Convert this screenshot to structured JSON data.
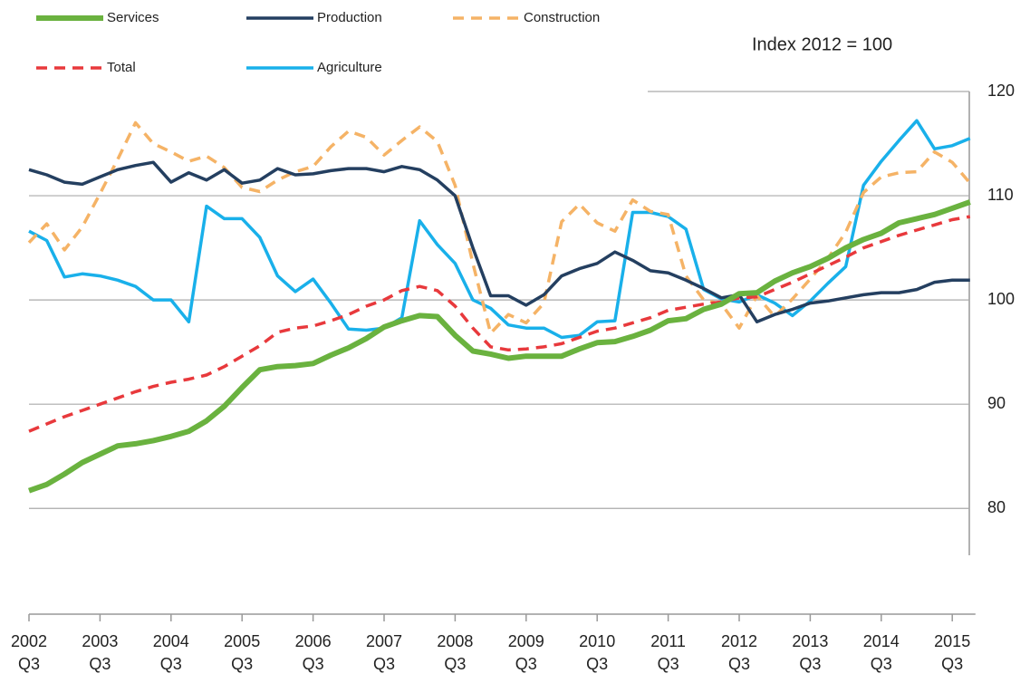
{
  "chart_data": {
    "type": "line",
    "annotation": "Index 2012 = 100",
    "categories": [
      "2002 Q3",
      null,
      null,
      null,
      "2003 Q3",
      null,
      null,
      null,
      "2004 Q3",
      null,
      null,
      null,
      "2005 Q3",
      null,
      null,
      null,
      "2006 Q3",
      null,
      null,
      null,
      "2007 Q3",
      null,
      null,
      null,
      "2008 Q3",
      null,
      null,
      null,
      "2009 Q3",
      null,
      null,
      null,
      "2010 Q3",
      null,
      null,
      null,
      "2011 Q3",
      null,
      null,
      null,
      "2012 Q3",
      null,
      null,
      null,
      "2013 Q3",
      null,
      null,
      null,
      "2014 Q3",
      null,
      null,
      null,
      "2015 Q3",
      null
    ],
    "series": [
      {
        "name": "Services",
        "color": "#6ab23f",
        "style": "solid",
        "width": 6,
        "values": [
          81.7,
          82.3,
          83.3,
          84.4,
          85.2,
          86.0,
          86.2,
          86.5,
          86.9,
          87.4,
          88.4,
          89.8,
          91.6,
          93.3,
          93.6,
          93.7,
          93.9,
          94.7,
          95.4,
          96.3,
          97.4,
          98.0,
          98.5,
          98.4,
          96.6,
          95.1,
          94.8,
          94.4,
          94.6,
          94.6,
          94.6,
          95.3,
          95.9,
          96.0,
          96.5,
          97.1,
          98.0,
          98.2,
          99.1,
          99.6,
          100.6,
          100.7,
          101.8,
          102.6,
          103.2,
          104.0,
          105.0,
          105.8,
          106.4,
          107.4,
          107.8,
          108.2,
          108.8,
          109.4
        ]
      },
      {
        "name": "Production",
        "color": "#243f60",
        "style": "solid",
        "width": 3.5,
        "values": [
          112.5,
          112.0,
          111.3,
          111.1,
          111.8,
          112.5,
          112.9,
          113.2,
          111.3,
          112.2,
          111.5,
          112.5,
          111.2,
          111.5,
          112.6,
          112.0,
          112.1,
          112.4,
          112.6,
          112.6,
          112.3,
          112.8,
          112.5,
          111.5,
          110.0,
          105.0,
          100.4,
          100.4,
          99.5,
          100.5,
          102.3,
          103.0,
          103.5,
          104.6,
          103.8,
          102.8,
          102.6,
          101.9,
          101.1,
          100.2,
          100.5,
          97.9,
          98.6,
          99.1,
          99.7,
          99.9,
          100.2,
          100.5,
          100.7,
          100.7,
          101.0,
          101.7,
          101.9,
          101.9
        ]
      },
      {
        "name": "Construction",
        "color": "#f5b366",
        "style": "dashed",
        "width": 3.5,
        "values": [
          105.5,
          107.3,
          104.8,
          107.0,
          110.2,
          113.5,
          117.0,
          115.0,
          114.2,
          113.3,
          113.8,
          112.7,
          110.8,
          110.4,
          111.5,
          112.3,
          112.8,
          114.7,
          116.2,
          115.6,
          113.9,
          115.3,
          116.6,
          115.2,
          111.0,
          103.5,
          96.8,
          98.6,
          97.8,
          99.7,
          107.5,
          109.2,
          107.4,
          106.6,
          109.6,
          108.5,
          108.2,
          102.3,
          100.0,
          99.6,
          97.3,
          100.4,
          98.4,
          100.1,
          102.0,
          104.0,
          106.5,
          110.3,
          111.8,
          112.2,
          112.3,
          114.2,
          113.2,
          111.2
        ]
      },
      {
        "name": "Total",
        "color": "#e8393c",
        "style": "dashed",
        "width": 3.5,
        "values": [
          87.4,
          88.1,
          88.8,
          89.4,
          90.0,
          90.6,
          91.2,
          91.7,
          92.1,
          92.4,
          92.8,
          93.6,
          94.6,
          95.6,
          96.9,
          97.3,
          97.5,
          98.0,
          98.6,
          99.4,
          100.0,
          100.9,
          101.3,
          100.9,
          99.4,
          97.3,
          95.5,
          95.2,
          95.3,
          95.5,
          95.8,
          96.4,
          97.0,
          97.3,
          97.8,
          98.3,
          99.0,
          99.3,
          99.6,
          99.8,
          100.2,
          100.3,
          101.0,
          101.7,
          102.5,
          103.3,
          104.1,
          105.0,
          105.6,
          106.2,
          106.7,
          107.2,
          107.7,
          108.0
        ]
      },
      {
        "name": "Agriculture",
        "color": "#19b0ea",
        "style": "solid",
        "width": 3.5,
        "values": [
          106.6,
          105.7,
          102.2,
          102.5,
          102.3,
          101.9,
          101.3,
          100.0,
          100.0,
          97.9,
          109.0,
          107.8,
          107.8,
          106.0,
          102.3,
          100.8,
          102.0,
          99.7,
          97.2,
          97.1,
          97.3,
          98.3,
          107.6,
          105.3,
          103.5,
          100.0,
          99.2,
          97.6,
          97.3,
          97.3,
          96.4,
          96.6,
          97.9,
          98.0,
          108.4,
          108.4,
          108.0,
          106.8,
          101.0,
          100.1,
          99.8,
          100.5,
          99.7,
          98.5,
          99.9,
          101.6,
          103.2,
          111.0,
          113.3,
          115.3,
          117.2,
          114.5,
          114.8,
          115.5
        ]
      }
    ],
    "ylim": [
      75.5,
      120
    ],
    "yticks": [
      80,
      90,
      100,
      110,
      120
    ],
    "grid": true
  }
}
